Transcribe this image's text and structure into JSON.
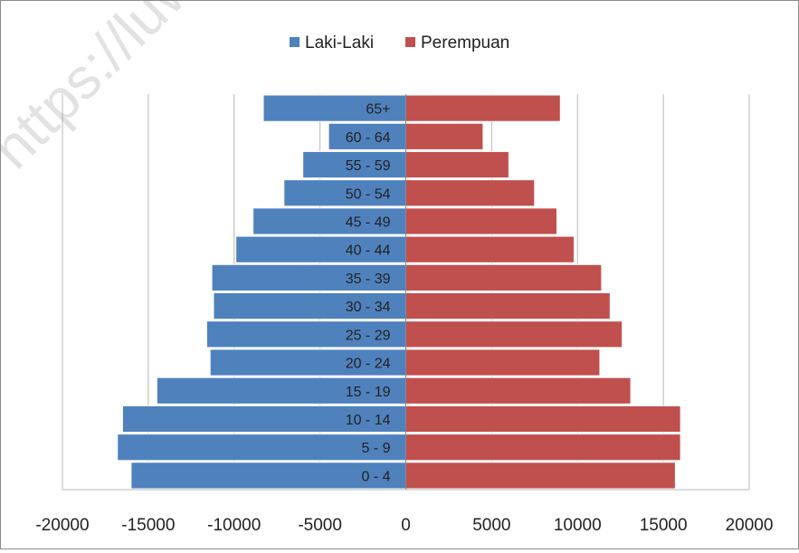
{
  "chart_data": {
    "type": "bar",
    "orientation": "horizontal",
    "title": "",
    "xlabel": "",
    "ylabel": "",
    "categories": [
      "0 - 4",
      "5 - 9",
      "10 - 14",
      "15 - 19",
      "20 - 24",
      "25 - 29",
      "30 - 34",
      "35 - 39",
      "40 - 44",
      "45 - 49",
      "50 - 54",
      "55 - 59",
      "60 - 64",
      "65+"
    ],
    "series": [
      {
        "name": "Laki-Laki",
        "color": "#4f81bd",
        "values": [
          -16000,
          -16800,
          -16500,
          -14500,
          -11400,
          -11600,
          -11200,
          -11300,
          -9900,
          -8900,
          -7100,
          -6000,
          -4500,
          -8300
        ]
      },
      {
        "name": "Perempuan",
        "color": "#c0504d",
        "values": [
          15700,
          16000,
          16000,
          13100,
          11300,
          12600,
          11900,
          11400,
          9800,
          8800,
          7500,
          6000,
          4500,
          9000
        ]
      }
    ],
    "xlim": [
      -20000,
      20000
    ],
    "xticks": [
      "-20000",
      "-15000",
      "-10000",
      "-5000",
      "0",
      "5000",
      "10000",
      "15000",
      "20000"
    ],
    "xtick_values": [
      -20000,
      -15000,
      -10000,
      -5000,
      0,
      5000,
      10000,
      15000,
      20000
    ],
    "grid": "vertical",
    "legend_position": "top"
  },
  "watermark": {
    "text": "https://luwuu"
  }
}
